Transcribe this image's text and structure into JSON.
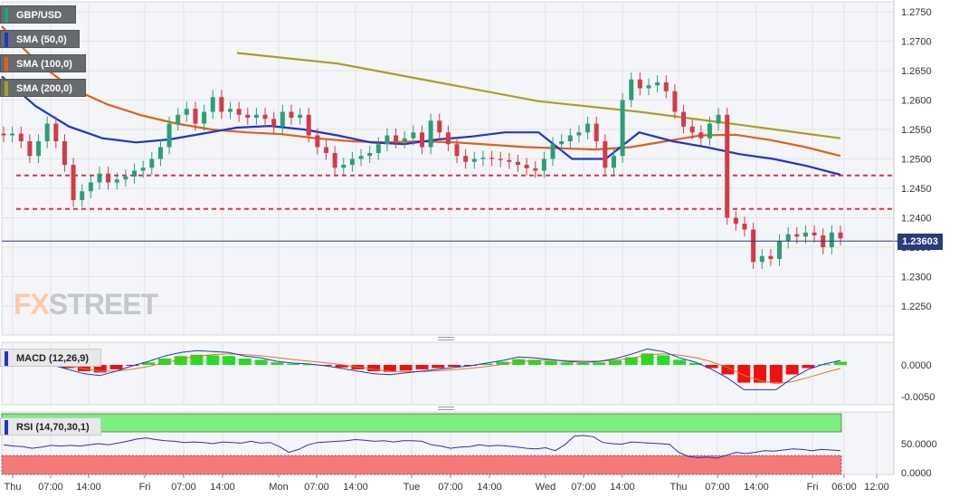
{
  "symbol": "GBP/USD",
  "indicators": {
    "sma50": {
      "label": "SMA (50,0)",
      "color": "#2233cc"
    },
    "sma100": {
      "label": "SMA (100,0)",
      "color": "#e0601a"
    },
    "sma200": {
      "label": "SMA (200,0)",
      "color": "#a8a020"
    },
    "macd": {
      "label": "MACD (12,26,9)"
    },
    "rsi": {
      "label": "RSI (14,70,30,1)"
    }
  },
  "logo": {
    "part1": "FX",
    "part2": "STREET"
  },
  "current_price": "1.23603",
  "colors": {
    "up": "#2aa076",
    "down": "#d43a48",
    "dashed": "#e0304a",
    "hist_pos": "#22dd22",
    "hist_neg": "#ee1111",
    "rsi_over": "#7cf07c",
    "rsi_under": "#f47a7a"
  },
  "chart_data": [
    {
      "type": "candlestick",
      "series": [
        {
          "name": "GBP/USD",
          "close": [
            1.254,
            1.2543,
            1.253,
            1.2505,
            1.253,
            1.256,
            1.253,
            1.249,
            1.243,
            1.2445,
            1.246,
            1.2475,
            1.246,
            1.2465,
            1.247,
            1.248,
            1.2485,
            1.25,
            1.252,
            1.256,
            1.2575,
            1.2585,
            1.256,
            1.258,
            1.2605,
            1.258,
            1.2585,
            1.2575,
            1.257,
            1.2575,
            1.2568,
            1.2555,
            1.258,
            1.257,
            1.2575,
            1.254,
            1.252,
            1.251,
            1.2485,
            1.249,
            1.25,
            1.2505,
            1.251,
            1.2525,
            1.254,
            1.253,
            1.2535,
            1.2545,
            1.252,
            1.2565,
            1.2545,
            1.2525,
            1.2505,
            1.2495,
            1.25,
            1.2502,
            1.25,
            1.2498,
            1.2495,
            1.249,
            1.2484,
            1.248,
            1.25,
            1.2525,
            1.253,
            1.254,
            1.2545,
            1.256,
            1.253,
            1.2485,
            1.2505,
            1.26,
            1.2635,
            1.262,
            1.2625,
            1.263,
            1.2615,
            1.258,
            1.2555,
            1.2545,
            1.2535,
            1.256,
            1.2575,
            1.24,
            1.239,
            1.238,
            1.2325,
            1.2335,
            1.233,
            1.236,
            1.2372,
            1.2368,
            1.2375,
            1.237,
            1.235,
            1.2375,
            1.2365
          ]
        },
        {
          "name": "SMA (50,0)",
          "values": [
            1.264,
            1.259,
            1.2555,
            1.2535,
            1.2528,
            1.2533,
            1.2543,
            1.2553,
            1.2556,
            1.255,
            1.254,
            1.2528,
            1.2525,
            1.2533,
            1.2538,
            1.2545,
            1.2545,
            1.25,
            1.25,
            1.2545,
            1.253,
            1.252,
            1.2508,
            1.25,
            1.2488,
            1.2473
          ]
        },
        {
          "name": "SMA (100,0)",
          "values": [
            1.2725,
            1.2665,
            1.262,
            1.2593,
            1.2574,
            1.256,
            1.255,
            1.2545,
            1.2542,
            1.2535,
            1.253,
            1.2528,
            1.253,
            1.2528,
            1.2524,
            1.252,
            1.2518,
            1.2516,
            1.252,
            1.253,
            1.254,
            1.2541,
            1.2532,
            1.252,
            1.2505
          ]
        },
        {
          "name": "SMA (200,0)",
          "values": [
            1.268,
            1.2662,
            1.263,
            1.2598,
            1.258,
            1.2558,
            1.2535
          ]
        }
      ]
    },
    {
      "type": "bar",
      "series": [
        {
          "name": "MACD (12,26,9)",
          "values": [
            0.0001,
            0.0001,
            0.0001,
            0.0,
            -0.0005,
            -0.001,
            -0.0012,
            -0.0007,
            -0.0001,
            0.0004,
            0.001,
            0.0014,
            0.0016,
            0.0015,
            0.0014,
            0.001,
            0.0008,
            0.0004,
            0.0002,
            0.0001,
            -0.0001,
            -0.0004,
            -0.0007,
            -0.001,
            -0.0011,
            -0.0009,
            -0.0007,
            -0.0005,
            -0.0003,
            -0.0001,
            0.0002,
            0.0005,
            0.0009,
            0.0008,
            0.0006,
            0.0004,
            0.0003,
            0.0004,
            0.0007,
            0.0012,
            0.0018,
            0.0015,
            0.0008,
            0.0003,
            -0.0005,
            -0.0015,
            -0.0028,
            -0.0028,
            -0.0028,
            -0.0015,
            -0.0005,
            0.0001,
            0.0005
          ]
        }
      ]
    },
    {
      "type": "line",
      "series": [
        {
          "name": "RSI (14,70,30,1)",
          "values": [
            48,
            46,
            45,
            42,
            44,
            47,
            46,
            47,
            46,
            48,
            50,
            48,
            51,
            54,
            58,
            60,
            57,
            55,
            54,
            52,
            53,
            52,
            50,
            53,
            52,
            51,
            54,
            51,
            52,
            45,
            35,
            40,
            48,
            52,
            53,
            54,
            55,
            57,
            56,
            54,
            55,
            53,
            55,
            55,
            54,
            48,
            46,
            42,
            44,
            45,
            48,
            46,
            47,
            46,
            44,
            42,
            41,
            43,
            38,
            48,
            63,
            64,
            62,
            52,
            50,
            49,
            53,
            52,
            51,
            50,
            49,
            35,
            28,
            26,
            27,
            25,
            30,
            35,
            33,
            35,
            38,
            37,
            39,
            41,
            40,
            38,
            40,
            39,
            38
          ]
        }
      ]
    }
  ],
  "price_axis": {
    "ticks": [
      "1.2750",
      "1.2700",
      "1.2650",
      "1.2600",
      "1.2550",
      "1.2500",
      "1.2450",
      "1.2400",
      "1.2350",
      "1.2300",
      "1.2250"
    ],
    "ylim": [
      1.22,
      1.2775
    ]
  },
  "macd_axis": {
    "ticks": [
      "0.0000",
      "-0.0050"
    ]
  },
  "rsi_axis": {
    "ticks": [
      "50.0000",
      "0.0000"
    ]
  },
  "time_axis": {
    "ticks": [
      "Thu",
      "07:00",
      "14:00",
      "Fri",
      "07:00",
      "14:00",
      "Mon",
      "07:00",
      "14:00",
      "Tue",
      "07:00",
      "14:00",
      "Wed",
      "07:00",
      "14:00",
      "Thu",
      "07:00",
      "14:00",
      "Fri",
      "06:00",
      "12:00"
    ]
  },
  "hlines": [
    1.2472,
    1.2415
  ]
}
